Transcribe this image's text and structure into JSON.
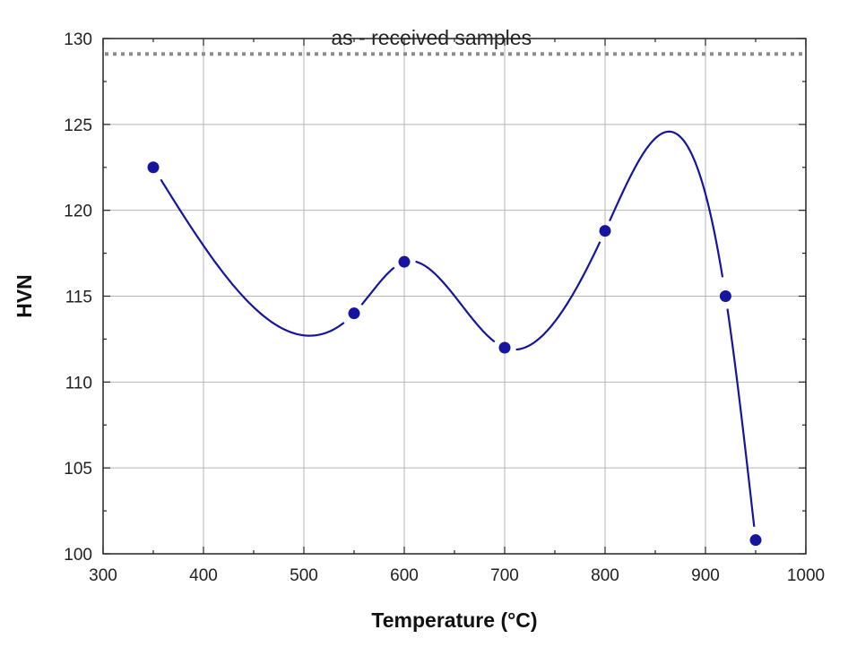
{
  "chart_data": {
    "type": "scatter",
    "title": "",
    "xlabel": "Temperature",
    "xlabel_unit": "(°C)",
    "ylabel": "HVN",
    "xlim": [
      300,
      1000
    ],
    "ylim": [
      100,
      130
    ],
    "xticks": [
      300,
      400,
      500,
      600,
      700,
      800,
      900,
      1000
    ],
    "yticks": [
      100,
      105,
      110,
      115,
      120,
      125,
      130
    ],
    "grid": true,
    "series": [
      {
        "points": [
          {
            "x": 350,
            "y": 122.5
          },
          {
            "x": 550,
            "y": 114.0
          },
          {
            "x": 600,
            "y": 117.0
          },
          {
            "x": 700,
            "y": 112.0
          },
          {
            "x": 800,
            "y": 118.8
          },
          {
            "x": 920,
            "y": 115.0
          },
          {
            "x": 950,
            "y": 100.8
          }
        ],
        "color": "#1515a0",
        "smooth_line": true
      }
    ],
    "reference_line": {
      "y": 129.1,
      "label": "as - received samples",
      "color": "#8c8c8c",
      "style": "dotted"
    }
  }
}
